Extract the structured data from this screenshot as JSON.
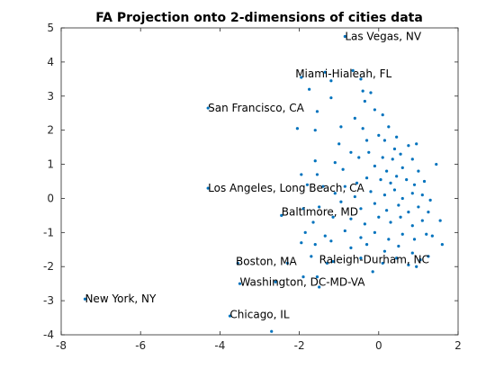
{
  "chart_data": {
    "type": "scatter",
    "title": "FA Projection onto 2-dimensions of cities data",
    "xlabel": "",
    "ylabel": "",
    "xlim": [
      -8,
      2
    ],
    "ylim": [
      -4,
      5
    ],
    "xticks": [
      -8,
      -6,
      -4,
      -2,
      0,
      2
    ],
    "yticks": [
      -4,
      -3,
      -2,
      -1,
      0,
      1,
      2,
      3,
      4,
      5
    ],
    "grid": false,
    "series": [
      {
        "name": "cities",
        "color": "#0072BD",
        "points": [
          [
            -0.85,
            4.75
          ],
          [
            -1.95,
            3.55
          ],
          [
            -1.35,
            3.7
          ],
          [
            -0.65,
            3.75
          ],
          [
            -0.45,
            3.5
          ],
          [
            -1.2,
            3.45
          ],
          [
            -1.75,
            3.2
          ],
          [
            -0.4,
            3.15
          ],
          [
            -0.2,
            3.1
          ],
          [
            -1.2,
            2.95
          ],
          [
            -0.35,
            2.85
          ],
          [
            -0.1,
            2.6
          ],
          [
            -1.55,
            2.55
          ],
          [
            -0.6,
            2.35
          ],
          [
            0.1,
            2.45
          ],
          [
            -4.3,
            2.65
          ],
          [
            -2.05,
            2.05
          ],
          [
            -1.6,
            2.0
          ],
          [
            -0.95,
            2.1
          ],
          [
            -0.4,
            2.05
          ],
          [
            0.25,
            2.1
          ],
          [
            0.0,
            1.85
          ],
          [
            0.15,
            1.7
          ],
          [
            -0.3,
            1.7
          ],
          [
            0.45,
            1.8
          ],
          [
            -1.0,
            1.6
          ],
          [
            0.4,
            1.45
          ],
          [
            -0.7,
            1.35
          ],
          [
            0.75,
            1.55
          ],
          [
            0.95,
            1.6
          ],
          [
            -1.6,
            1.1
          ],
          [
            -1.1,
            1.05
          ],
          [
            -0.5,
            1.2
          ],
          [
            -0.25,
            1.35
          ],
          [
            0.1,
            1.2
          ],
          [
            0.35,
            1.15
          ],
          [
            0.55,
            1.3
          ],
          [
            0.85,
            1.15
          ],
          [
            1.45,
            1.0
          ],
          [
            -1.95,
            0.7
          ],
          [
            -1.55,
            0.7
          ],
          [
            -0.9,
            0.85
          ],
          [
            -0.1,
            0.95
          ],
          [
            0.2,
            0.8
          ],
          [
            0.6,
            0.9
          ],
          [
            1.0,
            0.8
          ],
          [
            -4.3,
            0.3
          ],
          [
            -1.8,
            0.4
          ],
          [
            -1.4,
            0.35
          ],
          [
            -0.85,
            0.35
          ],
          [
            -0.55,
            0.45
          ],
          [
            -0.3,
            0.6
          ],
          [
            0.05,
            0.55
          ],
          [
            0.3,
            0.45
          ],
          [
            0.45,
            0.65
          ],
          [
            0.7,
            0.55
          ],
          [
            0.9,
            0.4
          ],
          [
            1.15,
            0.5
          ],
          [
            -1.1,
            0.15
          ],
          [
            -0.6,
            0.05
          ],
          [
            -0.2,
            0.2
          ],
          [
            0.15,
            0.1
          ],
          [
            0.4,
            0.25
          ],
          [
            0.6,
            0.0
          ],
          [
            0.85,
            0.15
          ],
          [
            1.1,
            0.1
          ],
          [
            1.3,
            -0.05
          ],
          [
            -1.9,
            -0.3
          ],
          [
            -1.5,
            -0.25
          ],
          [
            -0.95,
            -0.1
          ],
          [
            -0.45,
            -0.3
          ],
          [
            -0.1,
            -0.15
          ],
          [
            0.2,
            -0.35
          ],
          [
            0.5,
            -0.2
          ],
          [
            0.75,
            -0.4
          ],
          [
            1.0,
            -0.25
          ],
          [
            1.25,
            -0.4
          ],
          [
            -2.45,
            -0.5
          ],
          [
            -1.65,
            -0.7
          ],
          [
            -1.15,
            -0.55
          ],
          [
            -0.7,
            -0.6
          ],
          [
            -0.35,
            -0.75
          ],
          [
            0.0,
            -0.55
          ],
          [
            0.3,
            -0.7
          ],
          [
            0.55,
            -0.55
          ],
          [
            0.85,
            -0.8
          ],
          [
            1.1,
            -0.65
          ],
          [
            -1.85,
            -1.0
          ],
          [
            -1.35,
            -1.1
          ],
          [
            -0.85,
            -0.95
          ],
          [
            -0.45,
            -1.15
          ],
          [
            -0.1,
            -1.0
          ],
          [
            0.25,
            -1.2
          ],
          [
            0.6,
            -1.05
          ],
          [
            0.9,
            -1.2
          ],
          [
            1.2,
            -1.05
          ],
          [
            1.55,
            -0.65
          ],
          [
            -1.95,
            -1.3
          ],
          [
            -1.6,
            -1.35
          ],
          [
            -1.2,
            -1.25
          ],
          [
            -0.7,
            -1.45
          ],
          [
            -0.3,
            -1.35
          ],
          [
            0.15,
            -1.55
          ],
          [
            0.5,
            -1.4
          ],
          [
            0.85,
            -1.6
          ],
          [
            1.35,
            -1.1
          ],
          [
            1.6,
            -1.35
          ],
          [
            -1.7,
            -1.7
          ],
          [
            -1.15,
            -1.85
          ],
          [
            -0.45,
            -1.75
          ],
          [
            0.1,
            -1.9
          ],
          [
            0.45,
            -1.75
          ],
          [
            0.75,
            -1.95
          ],
          [
            1.05,
            -1.8
          ],
          [
            -3.55,
            -1.9
          ],
          [
            -2.3,
            -1.9
          ],
          [
            -1.3,
            -1.9
          ],
          [
            -0.15,
            -2.15
          ],
          [
            0.95,
            -2.0
          ],
          [
            1.25,
            -1.7
          ],
          [
            -3.5,
            -2.5
          ],
          [
            -2.6,
            -2.45
          ],
          [
            -1.5,
            -2.6
          ],
          [
            -1.55,
            -2.3
          ],
          [
            -1.9,
            -2.3
          ],
          [
            -7.4,
            -2.95
          ],
          [
            -3.75,
            -3.45
          ],
          [
            -2.7,
            -3.9
          ]
        ]
      }
    ],
    "annotations": [
      {
        "text": "Las Vegas, NV",
        "x": -0.85,
        "y": 4.75
      },
      {
        "text": "Miami-Hialeah, FL",
        "x": -2.1,
        "y": 3.65
      },
      {
        "text": "San Francisco, CA",
        "x": -4.3,
        "y": 2.65
      },
      {
        "text": "Los Angeles, Long Beach, CA",
        "x": -4.3,
        "y": 0.3
      },
      {
        "text": "Baltimore, MD",
        "x": -2.45,
        "y": -0.4
      },
      {
        "text": "Boston, MA",
        "x": -3.6,
        "y": -1.85
      },
      {
        "text": "Raleigh-Durham, NC",
        "x": -1.5,
        "y": -1.8
      },
      {
        "text": "Washington, DC-MD-VA",
        "x": -3.5,
        "y": -2.45
      },
      {
        "text": "New York, NY",
        "x": -7.4,
        "y": -2.95
      },
      {
        "text": "Chicago, IL",
        "x": -3.75,
        "y": -3.4
      }
    ]
  }
}
